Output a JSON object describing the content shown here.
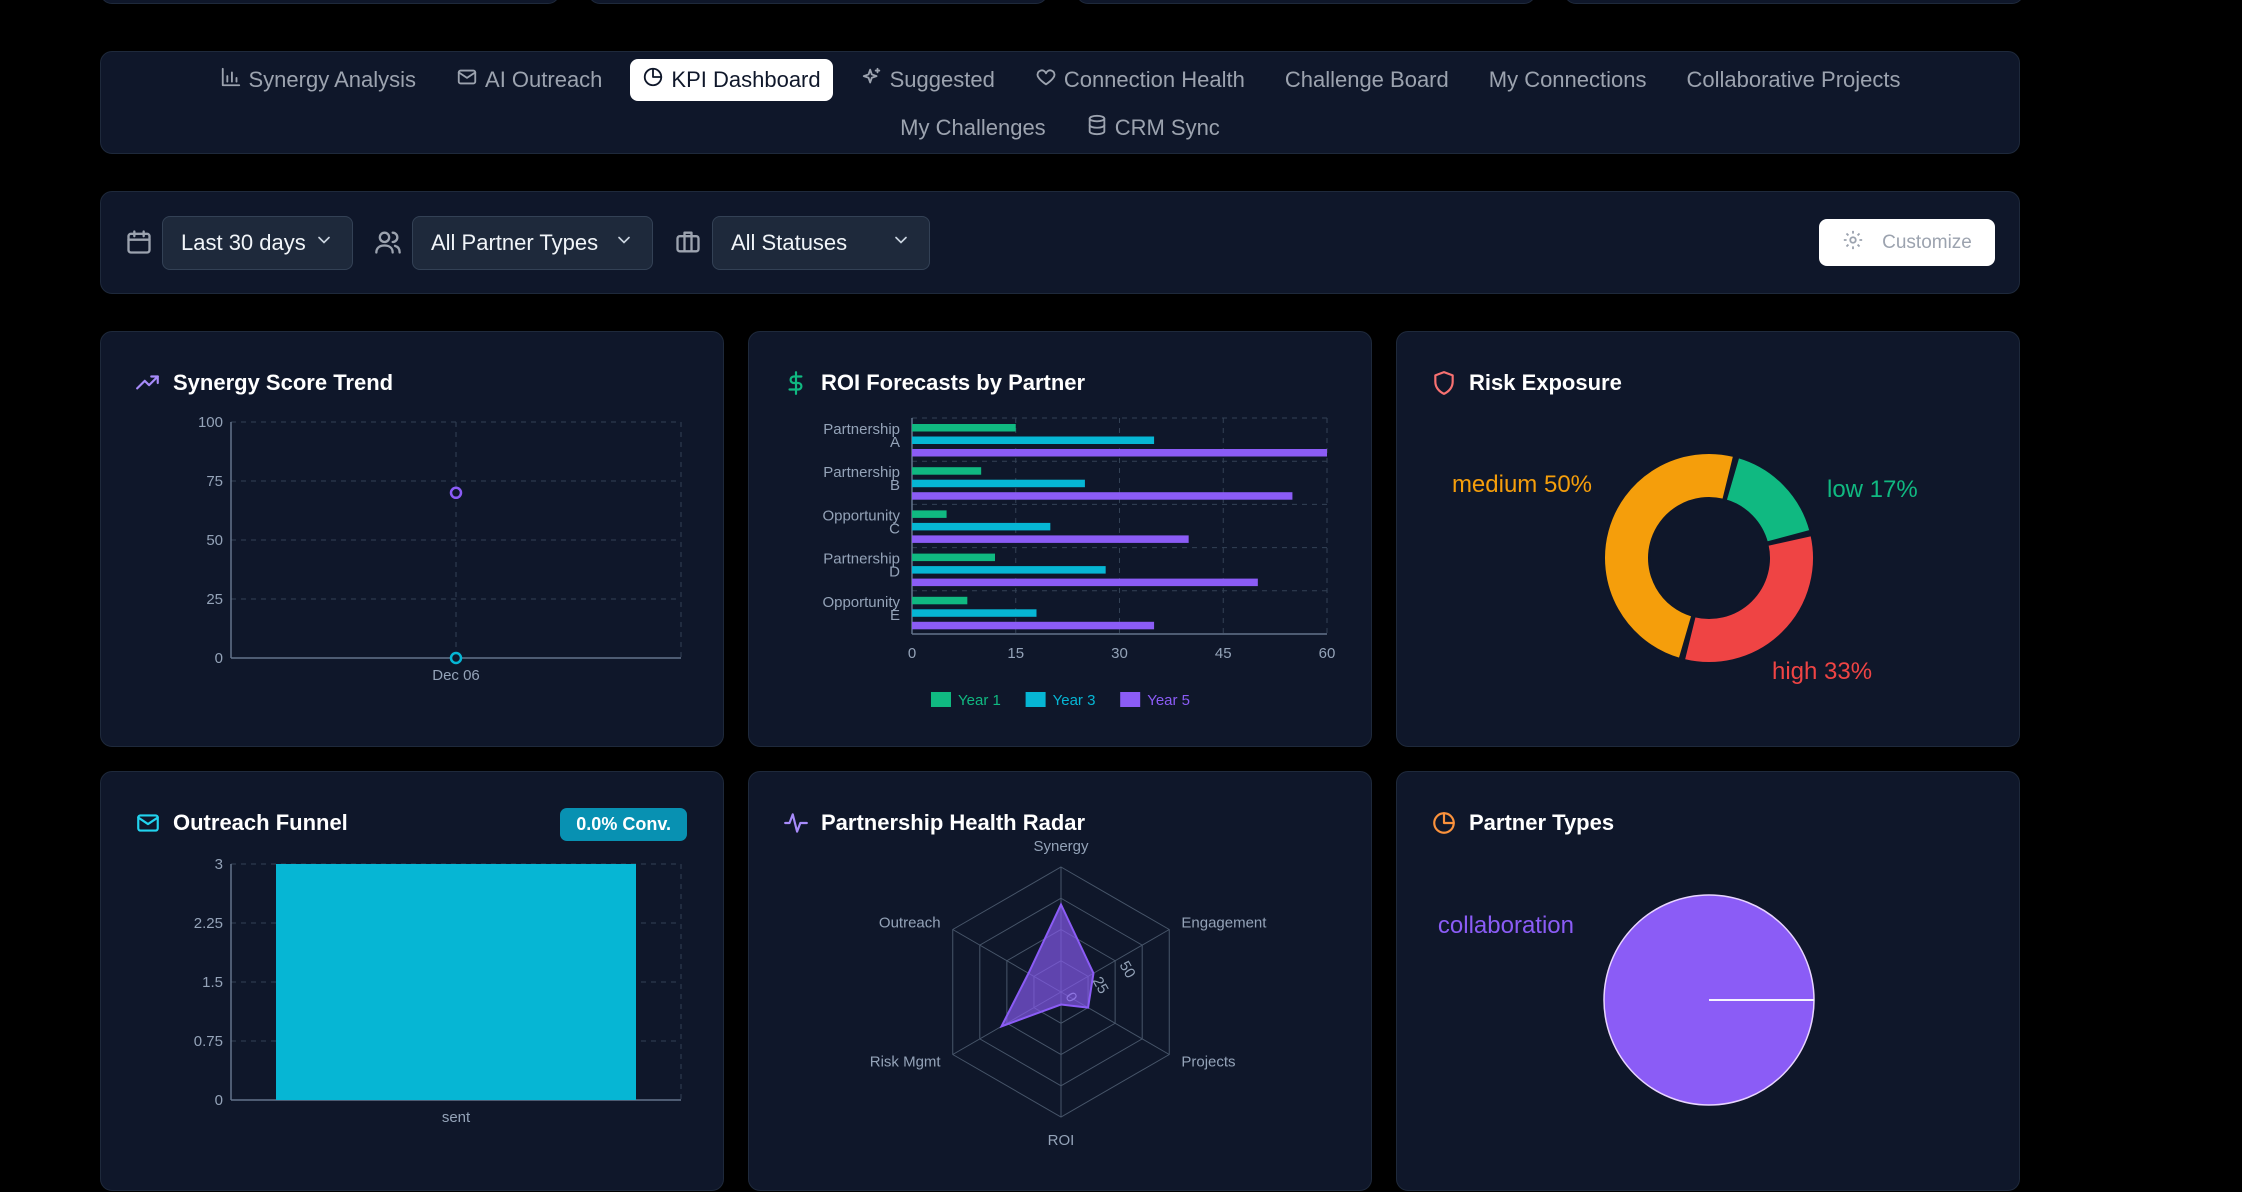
{
  "tabs": [
    {
      "label": "Synergy Analysis",
      "icon": "bar-chart-icon",
      "active": false
    },
    {
      "label": "AI Outreach",
      "icon": "mail-icon",
      "active": false
    },
    {
      "label": "KPI Dashboard",
      "icon": "pie-chart-icon",
      "active": true
    },
    {
      "label": "Suggested",
      "icon": "sparkles-icon",
      "active": false
    },
    {
      "label": "Connection Health",
      "icon": "heart-icon",
      "active": false
    },
    {
      "label": "Challenge Board",
      "icon": "",
      "active": false
    },
    {
      "label": "My Connections",
      "icon": "",
      "active": false
    },
    {
      "label": "Collaborative Projects",
      "icon": "",
      "active": false
    },
    {
      "label": "My Challenges",
      "icon": "",
      "active": false
    },
    {
      "label": "CRM Sync",
      "icon": "database-icon",
      "active": false
    }
  ],
  "filters": {
    "date_range": "Last 30 days",
    "partner_type": "All Partner Types",
    "status": "All Statuses",
    "customize_label": "Customize"
  },
  "colors": {
    "purple": "#8b5cf6",
    "cyan": "#06b6d4",
    "green": "#10b981",
    "orange": "#f59e0b",
    "red": "#ef4444"
  },
  "cards": {
    "synergy_trend": {
      "title": "Synergy Score Trend",
      "chart_data": {
        "type": "line",
        "x": [
          "Dec 06"
        ],
        "series": [
          {
            "values": [
              70
            ],
            "color": "#8b5cf6"
          },
          {
            "values": [
              0
            ],
            "color": "#06b6d4"
          }
        ],
        "ylim": [
          0,
          100
        ],
        "yticks": [
          0,
          25,
          50,
          75,
          100
        ],
        "grid": true
      }
    },
    "roi_forecasts": {
      "title": "ROI Forecasts by Partner",
      "chart_data": {
        "type": "bar",
        "orientation": "horizontal",
        "categories": [
          "Partnership A",
          "Partnership B",
          "Opportunity C",
          "Partnership D",
          "Opportunity E"
        ],
        "series": [
          {
            "name": "Year 1",
            "values": [
              15,
              10,
              5,
              12,
              8
            ],
            "color": "#10b981"
          },
          {
            "name": "Year 3",
            "values": [
              35,
              25,
              20,
              28,
              18
            ],
            "color": "#06b6d4"
          },
          {
            "name": "Year 5",
            "values": [
              60,
              55,
              40,
              50,
              35
            ],
            "color": "#8b5cf6"
          }
        ],
        "xlim": [
          0,
          60
        ],
        "xticks": [
          0,
          15,
          30,
          45,
          60
        ],
        "legend": "bottom",
        "grid": true
      }
    },
    "risk_exposure": {
      "title": "Risk Exposure",
      "chart_data": {
        "type": "pie",
        "donut": true,
        "slices": [
          {
            "label": "low 17%",
            "value": 17,
            "color": "#10b981"
          },
          {
            "label": "high 33%",
            "value": 33,
            "color": "#ef4444"
          },
          {
            "label": "medium 50%",
            "value": 50,
            "color": "#f59e0b"
          }
        ]
      }
    },
    "outreach_funnel": {
      "title": "Outreach Funnel",
      "badge": "0.0% Conv.",
      "chart_data": {
        "type": "bar",
        "categories": [
          "sent"
        ],
        "values": [
          3
        ],
        "color": "#06b6d4",
        "ylim": [
          0,
          3
        ],
        "yticks": [
          "0",
          "0.75",
          "1.5",
          "2.25",
          "3"
        ],
        "grid": true
      }
    },
    "health_radar": {
      "title": "Partnership Health Radar",
      "chart_data": {
        "type": "radar",
        "axes": [
          "Synergy",
          "Engagement",
          "Projects",
          "ROI",
          "Risk Mgmt",
          "Outreach"
        ],
        "values": [
          70,
          30,
          25,
          10,
          55,
          30
        ],
        "max": 100,
        "radial_ticks": [
          "0",
          "25",
          "50"
        ],
        "color": "#8b5cf6"
      }
    },
    "partner_types": {
      "title": "Partner Types",
      "chart_data": {
        "type": "pie",
        "slices": [
          {
            "label": "collaboration",
            "value": 100,
            "color": "#8b5cf6"
          }
        ]
      }
    }
  }
}
